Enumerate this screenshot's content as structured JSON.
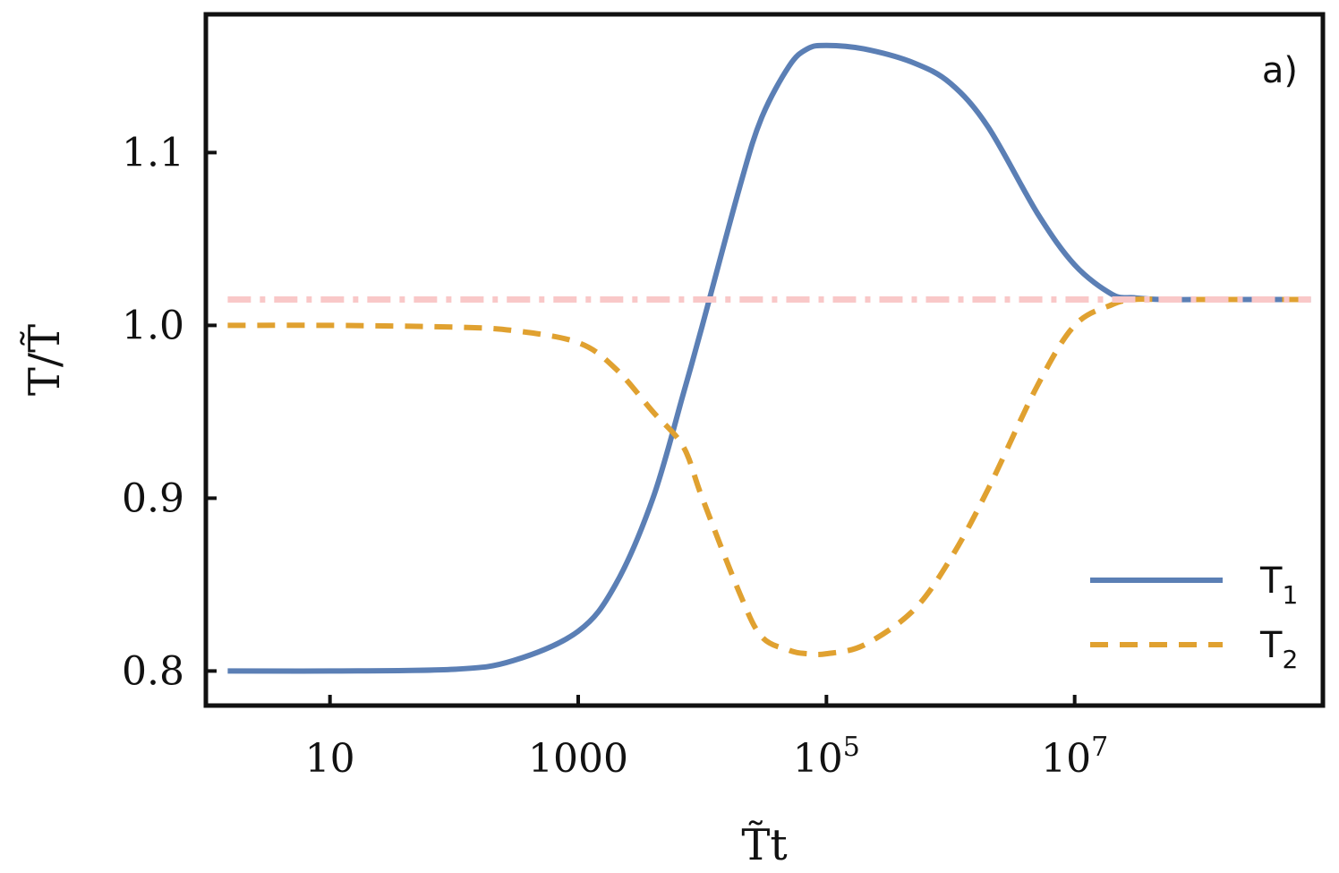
{
  "chart_data": {
    "type": "line",
    "panel_label": "a)",
    "xlabel": "T̃t",
    "ylabel": "T/T̃",
    "xscale": "log",
    "xlim": [
      1,
      1000000000
    ],
    "ylim": [
      0.78,
      1.18
    ],
    "xticks": [
      {
        "value": 10,
        "base": "10",
        "exp": ""
      },
      {
        "value": 1000,
        "base": "1000",
        "exp": ""
      },
      {
        "value": 100000,
        "base": "10",
        "exp": "5"
      },
      {
        "value": 10000000,
        "base": "10",
        "exp": "7"
      }
    ],
    "yticks": [
      {
        "value": 0.8,
        "label": "0.8"
      },
      {
        "value": 0.9,
        "label": "0.9"
      },
      {
        "value": 1.0,
        "label": "1.0"
      },
      {
        "value": 1.1,
        "label": "1.1"
      }
    ],
    "legend_position": "bottom-right",
    "grid": false,
    "series": [
      {
        "name": "T",
        "subscript": "1",
        "color": "#5b7fb5",
        "style": "solid",
        "x": [
          1.5,
          10,
          100,
          300,
          1000,
          2000,
          4000,
          7000,
          10000,
          20000,
          30000,
          50000,
          70000,
          100000,
          200000,
          500000,
          1000000,
          2000000,
          5000000,
          10000000,
          20000000,
          30000000,
          50000000,
          100000000,
          300000000,
          800000000
        ],
        "y": [
          0.8,
          0.8,
          0.801,
          0.806,
          0.823,
          0.85,
          0.9,
          0.96,
          1.0,
          1.08,
          1.12,
          1.15,
          1.16,
          1.162,
          1.16,
          1.152,
          1.14,
          1.115,
          1.065,
          1.035,
          1.018,
          1.016,
          1.015,
          1.015,
          1.015,
          1.015
        ]
      },
      {
        "name": "T",
        "subscript": "2",
        "color": "#e0a130",
        "style": "dashed",
        "x": [
          1.5,
          10,
          100,
          300,
          1000,
          2000,
          4000,
          7000,
          10000,
          20000,
          30000,
          50000,
          70000,
          100000,
          200000,
          500000,
          1000000,
          2000000,
          5000000,
          10000000,
          20000000,
          30000000,
          50000000,
          100000000,
          300000000,
          800000000
        ],
        "y": [
          1.0,
          1.0,
          0.999,
          0.997,
          0.99,
          0.975,
          0.95,
          0.93,
          0.9,
          0.845,
          0.82,
          0.812,
          0.81,
          0.81,
          0.815,
          0.835,
          0.865,
          0.905,
          0.965,
          1.0,
          1.012,
          1.015,
          1.015,
          1.015,
          1.015,
          1.015
        ]
      },
      {
        "name": "",
        "color": "#f9c8c8",
        "style": "dashdot",
        "x": [
          1.5,
          800000000
        ],
        "y": [
          1.015,
          1.015
        ]
      }
    ]
  }
}
